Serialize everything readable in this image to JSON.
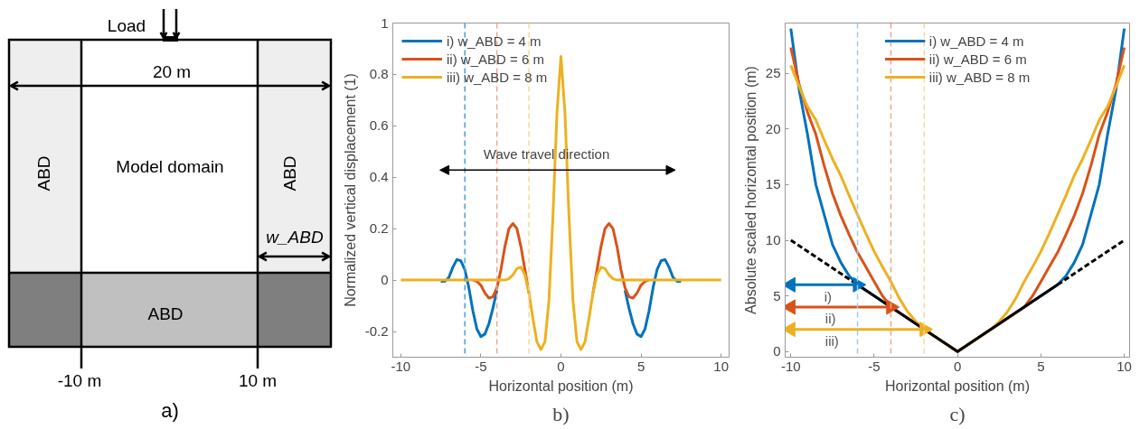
{
  "chart_data": [
    {
      "type": "other",
      "title": "a)",
      "annotations": [
        "Load",
        "20 m",
        "ABD",
        "Model domain",
        "ABD",
        "w_ABD",
        "ABD",
        "-10 m",
        "10 m"
      ]
    },
    {
      "type": "line",
      "title": "b)",
      "xlabel": "Horizontal position (m)",
      "ylabel": "Normalized vertical displacement (1)",
      "xlim": [
        -10.5,
        10.5
      ],
      "xticks": [
        -10,
        -5,
        0,
        5,
        10
      ],
      "ylim": [
        -0.3,
        1
      ],
      "yticks": [
        -0.2,
        0,
        0.2,
        0.4,
        0.6,
        0.8,
        1
      ],
      "legend": "top left",
      "grid": false,
      "annotations": [
        "Wave travel direction"
      ],
      "ref_lines": [
        {
          "axis": "x",
          "value": -6,
          "color": "#4a9fe0",
          "line_style": "dashed"
        },
        {
          "axis": "x",
          "value": -4,
          "color": "#f2a58a",
          "line_style": "dashed"
        },
        {
          "axis": "x",
          "value": -2,
          "color": "#f7d898",
          "line_style": "dashed"
        }
      ],
      "series": [
        {
          "name": "i) w_ABD = 4 m",
          "color": "#0072bd",
          "x": [
            -7.5,
            -7.25,
            -7,
            -6.75,
            -6.5,
            -6.25,
            -6,
            -5.75,
            -5.5,
            -5.25,
            -5,
            -4.75,
            -4.5,
            -4.25,
            -4,
            -3.75,
            -3.5,
            -3.25,
            -3,
            -2.75,
            -2.5,
            -2.25,
            -2,
            -1.75,
            -1.5,
            -1.25,
            -1,
            -0.75,
            -0.5,
            -0.25,
            0,
            0.25,
            0.5,
            0.75,
            1,
            1.25,
            1.5,
            1.75,
            2,
            2.25,
            2.5,
            2.75,
            3,
            3.25,
            3.5,
            3.75,
            4,
            4.25,
            4.5,
            4.75,
            5,
            5.25,
            5.5,
            5.75,
            6,
            6.25,
            6.5,
            6.75,
            7,
            7.25,
            7.5
          ],
          "values": [
            -0.005,
            -0.005,
            0.01,
            0.05,
            0.08,
            0.075,
            0.04,
            -0.03,
            -0.12,
            -0.19,
            -0.22,
            -0.21,
            -0.17,
            -0.11,
            -0.04,
            null,
            null,
            null,
            null,
            null,
            null,
            null,
            null,
            null,
            null,
            null,
            null,
            null,
            null,
            null,
            null,
            null,
            null,
            null,
            null,
            null,
            null,
            null,
            null,
            null,
            null,
            null,
            null,
            null,
            null,
            null,
            -0.04,
            -0.11,
            -0.17,
            -0.21,
            -0.22,
            -0.19,
            -0.12,
            -0.03,
            0.04,
            0.075,
            0.08,
            0.05,
            0.01,
            -0.005,
            -0.005
          ]
        },
        {
          "name": "ii) w_ABD = 6 m",
          "color": "#d95319",
          "x": [
            -5.5,
            -5.25,
            -5,
            -4.75,
            -4.5,
            -4.25,
            -4,
            -3.75,
            -3.5,
            -3.25,
            -3,
            -2.75,
            -2.5,
            -2.25,
            -2,
            -1.75,
            -1.5,
            -1.25,
            -1,
            -0.75,
            -0.5,
            -0.25,
            0,
            0.25,
            0.5,
            0.75,
            1,
            1.25,
            1.5,
            1.75,
            2,
            2.25,
            2.5,
            2.75,
            3,
            3.25,
            3.5,
            3.75,
            4,
            4.25,
            4.5,
            4.75,
            5,
            5.25,
            5.5
          ],
          "values": [
            0,
            -0.005,
            -0.02,
            -0.05,
            -0.07,
            -0.065,
            -0.03,
            0.04,
            0.13,
            0.2,
            0.22,
            0.2,
            0.13,
            0.04,
            -0.05,
            null,
            null,
            null,
            null,
            null,
            null,
            null,
            null,
            null,
            null,
            null,
            null,
            null,
            null,
            null,
            -0.05,
            0.04,
            0.13,
            0.2,
            0.22,
            0.2,
            0.13,
            0.04,
            -0.03,
            -0.065,
            -0.07,
            -0.05,
            -0.02,
            -0.005,
            0
          ]
        },
        {
          "name": "iii) w_ABD = 8 m",
          "color": "#edb120",
          "x": [
            -10,
            -4,
            -3.75,
            -3.5,
            -3.25,
            -3,
            -2.75,
            -2.5,
            -2.25,
            -2,
            -1.75,
            -1.5,
            -1.25,
            -1,
            -0.75,
            -0.5,
            -0.25,
            0,
            0.25,
            0.5,
            0.75,
            1,
            1.25,
            1.5,
            1.75,
            2,
            2.25,
            2.5,
            2.75,
            3,
            3.25,
            3.5,
            3.75,
            4,
            10
          ],
          "values": [
            0,
            0,
            0,
            0,
            0.005,
            0.02,
            0.045,
            0.05,
            0.02,
            -0.05,
            -0.15,
            -0.24,
            -0.27,
            -0.24,
            -0.08,
            0.25,
            0.65,
            0.87,
            0.65,
            0.25,
            -0.08,
            -0.24,
            -0.27,
            -0.24,
            -0.15,
            -0.05,
            0.02,
            0.05,
            0.045,
            0.02,
            0.005,
            0,
            0,
            0,
            0
          ]
        }
      ]
    },
    {
      "type": "line",
      "title": "c)",
      "xlabel": "Horizontal position (m)",
      "ylabel": "Absolute scaled horizontal position (m)",
      "xlim": [
        -10.34,
        10.32
      ],
      "xticks": [
        -10,
        -5,
        0,
        5,
        10
      ],
      "ylim": [
        -0.5,
        29.5
      ],
      "yticks": [
        0,
        5,
        10,
        15,
        20,
        25
      ],
      "legend": "top",
      "grid": false,
      "annotations": [
        "i)",
        "ii)",
        "iii)"
      ],
      "ref_lines": [
        {
          "axis": "x",
          "value": -6,
          "color": "#9ecbea",
          "line_style": "dashed"
        },
        {
          "axis": "x",
          "value": -4,
          "color": "#f2a58a",
          "line_style": "dashed"
        },
        {
          "axis": "x",
          "value": -2,
          "color": "#f7d898",
          "line_style": "dashed"
        }
      ],
      "series": [
        {
          "name": "i) w_ABD = 4 m",
          "color": "#0072bd",
          "x": [
            -10,
            -9.5,
            -9,
            -8.5,
            -8,
            -7.5,
            -7,
            -6.5,
            -6,
            0,
            6,
            6.5,
            7,
            7.5,
            8,
            8.5,
            9,
            9.5,
            10
          ],
          "values": [
            29,
            23.5,
            19.5,
            15,
            12.3,
            9.6,
            8,
            6.8,
            6,
            0,
            6,
            6.8,
            8,
            9.6,
            12.3,
            15,
            19.5,
            23.5,
            29
          ]
        },
        {
          "name": "ii) w_ABD = 6 m",
          "color": "#d95319",
          "x": [
            -10,
            -9.5,
            -9,
            -8.5,
            -8,
            -7.5,
            -7,
            -6.5,
            -6,
            -5.5,
            -5,
            -4.5,
            -4,
            0,
            4,
            4.5,
            5,
            5.5,
            6,
            6.5,
            7,
            7.5,
            8,
            8.5,
            9,
            9.5,
            10
          ],
          "values": [
            27.3,
            24,
            21.5,
            19.5,
            16.7,
            14.2,
            12.2,
            10.5,
            8.9,
            7.6,
            6.3,
            5,
            4,
            0,
            4,
            5,
            6.3,
            7.6,
            8.9,
            10.5,
            12.2,
            14.2,
            16.7,
            19.5,
            21.5,
            24,
            27.3
          ]
        },
        {
          "name": "iii) w_ABD = 8 m",
          "color": "#edb120",
          "x": [
            -10,
            -9.5,
            -9,
            -8.5,
            -8,
            -7.5,
            -7,
            -6.5,
            -6,
            -5.5,
            -5,
            -4.5,
            -4,
            -3.5,
            -3,
            -2.5,
            -2,
            0,
            2,
            2.5,
            3,
            3.5,
            4,
            4.5,
            5,
            5.5,
            6,
            6.5,
            7,
            7.5,
            8,
            8.5,
            9,
            9.5,
            10
          ],
          "values": [
            25.7,
            23.8,
            22,
            20.8,
            19,
            17.3,
            15.8,
            14,
            12.3,
            10.6,
            9,
            7.6,
            6.3,
            4.8,
            3.6,
            2.7,
            2,
            0,
            2,
            2.7,
            3.6,
            4.8,
            6.3,
            7.6,
            9,
            10.6,
            12.3,
            14,
            15.8,
            17.3,
            19,
            20.8,
            22,
            23.8,
            25.7
          ]
        },
        {
          "color": "#000000",
          "line_style": "solid",
          "x": [
            -6,
            0,
            6
          ],
          "values": [
            6,
            0,
            6
          ]
        },
        {
          "color": "#000000",
          "line_style": "dashed",
          "x": [
            -10,
            -6,
            0,
            6,
            10
          ],
          "values": [
            10,
            6,
            null,
            6,
            10
          ]
        },
        {
          "color": "#0072bd",
          "marker": "triangle",
          "x": [
            -10,
            -6
          ],
          "values": [
            6,
            6
          ]
        },
        {
          "color": "#d95319",
          "marker": "triangle",
          "x": [
            -10,
            -4
          ],
          "values": [
            4,
            4
          ]
        },
        {
          "color": "#edb120",
          "marker": "triangle",
          "x": [
            -10,
            -2
          ],
          "values": [
            2,
            2
          ]
        }
      ]
    }
  ]
}
